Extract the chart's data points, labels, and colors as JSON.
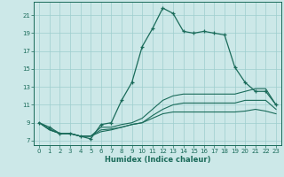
{
  "xlabel": "Humidex (Indice chaleur)",
  "bg_color": "#cce8e8",
  "grid_color": "#9ecece",
  "line_color": "#1a6b5a",
  "xlim": [
    -0.5,
    23.5
  ],
  "ylim": [
    6.5,
    22.5
  ],
  "xticks": [
    0,
    1,
    2,
    3,
    4,
    5,
    6,
    7,
    8,
    9,
    10,
    11,
    12,
    13,
    14,
    15,
    16,
    17,
    18,
    19,
    20,
    21,
    22,
    23
  ],
  "yticks": [
    7,
    9,
    11,
    13,
    15,
    17,
    19,
    21
  ],
  "line1_x": [
    0,
    1,
    2,
    3,
    4,
    5,
    6,
    7,
    8,
    9,
    10,
    11,
    12,
    13,
    14,
    15,
    16,
    17,
    18,
    19,
    20,
    21,
    22,
    23
  ],
  "line1_y": [
    9.0,
    8.5,
    7.8,
    7.8,
    7.5,
    7.2,
    8.8,
    9.0,
    11.5,
    13.5,
    17.5,
    19.5,
    21.8,
    21.2,
    19.2,
    19.0,
    19.2,
    19.0,
    18.8,
    15.2,
    13.5,
    12.5,
    12.5,
    11.0
  ],
  "line2_x": [
    0,
    1,
    2,
    3,
    4,
    5,
    6,
    7,
    8,
    9,
    10,
    11,
    12,
    13,
    14,
    15,
    16,
    17,
    18,
    19,
    20,
    21,
    22,
    23
  ],
  "line2_y": [
    9.0,
    8.3,
    7.8,
    7.8,
    7.5,
    7.5,
    8.5,
    8.5,
    8.8,
    9.0,
    9.5,
    10.5,
    11.5,
    12.0,
    12.2,
    12.2,
    12.2,
    12.2,
    12.2,
    12.2,
    12.5,
    12.8,
    12.8,
    11.0
  ],
  "line3_x": [
    0,
    1,
    2,
    3,
    4,
    5,
    6,
    7,
    8,
    9,
    10,
    11,
    12,
    13,
    14,
    15,
    16,
    17,
    18,
    19,
    20,
    21,
    22,
    23
  ],
  "line3_y": [
    9.0,
    8.2,
    7.8,
    7.8,
    7.5,
    7.5,
    8.2,
    8.3,
    8.5,
    8.8,
    9.0,
    9.8,
    10.5,
    11.0,
    11.2,
    11.2,
    11.2,
    11.2,
    11.2,
    11.2,
    11.5,
    11.5,
    11.5,
    10.5
  ],
  "line4_x": [
    0,
    1,
    2,
    3,
    4,
    5,
    6,
    7,
    8,
    9,
    10,
    11,
    12,
    13,
    14,
    15,
    16,
    17,
    18,
    19,
    20,
    21,
    22,
    23
  ],
  "line4_y": [
    9.0,
    8.2,
    7.8,
    7.8,
    7.5,
    7.5,
    8.0,
    8.2,
    8.5,
    8.8,
    9.0,
    9.5,
    10.0,
    10.2,
    10.2,
    10.2,
    10.2,
    10.2,
    10.2,
    10.2,
    10.3,
    10.5,
    10.3,
    10.0
  ]
}
